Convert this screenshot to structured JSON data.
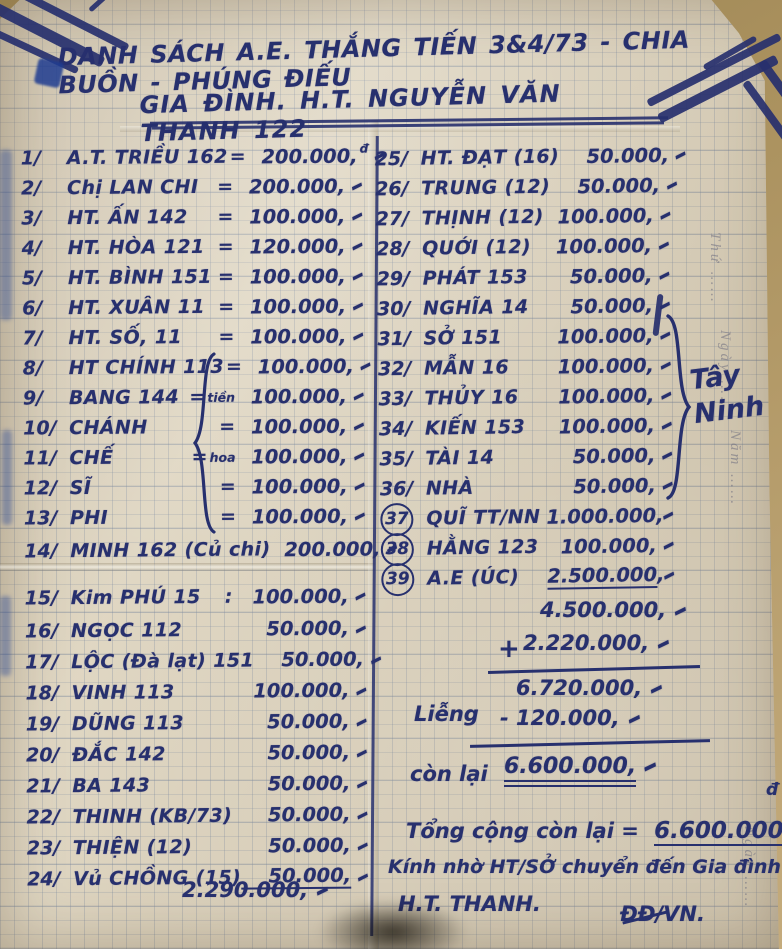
{
  "title": {
    "line1": "DANH SÁCH A.E. THẮNG TIẾN 3&4/73 - CHIA BUỒN - PHÚNG ĐIẾU",
    "line2": "GIA ĐÌNH. H.T. NGUYỄN VĂN THANH 122"
  },
  "left_entries": [
    {
      "no": "1/",
      "name": "A.T. TRIỀU 162",
      "eq": "=",
      "pre": "",
      "amount": "200.000,",
      "sup": "đ"
    },
    {
      "no": "2/",
      "name": "Chị LAN CHI",
      "eq": "=",
      "pre": "",
      "amount": "200.000,"
    },
    {
      "no": "3/",
      "name": "HT. ẤN 142",
      "eq": "=",
      "pre": "",
      "amount": "100.000,"
    },
    {
      "no": "4/",
      "name": "HT. HÒA 121",
      "eq": "=",
      "pre": "",
      "amount": "120.000,"
    },
    {
      "no": "5/",
      "name": "HT. BÌNH 151",
      "eq": "=",
      "pre": "",
      "amount": "100.000,"
    },
    {
      "no": "6/",
      "name": "HT. XUÂN 11",
      "eq": "=",
      "pre": "",
      "amount": "100.000,"
    },
    {
      "no": "7/",
      "name": "HT. SỐ, 11",
      "eq": "=",
      "pre": "",
      "amount": "100.000,"
    },
    {
      "no": "8/",
      "name": "HT CHÍNH 113",
      "eq": "=",
      "pre": "",
      "amount": "100.000,"
    },
    {
      "no": "9/",
      "name": "BANG 144",
      "eq": "=",
      "pre": "tiền",
      "amount": "100.000,"
    },
    {
      "no": "10/",
      "name": "CHÁNH",
      "eq": "=",
      "pre": "",
      "amount": "100.000,"
    },
    {
      "no": "11/",
      "name": "CHẾ",
      "eq": "=",
      "pre": "hoa",
      "amount": "100.000,"
    },
    {
      "no": "12/",
      "name": "SĨ",
      "eq": "=",
      "pre": "",
      "amount": "100.000,"
    },
    {
      "no": "13/",
      "name": "PHI",
      "eq": "=",
      "pre": "",
      "amount": "100.000,"
    },
    {
      "no": "14/",
      "name": "MINH 162 (Củ chi)",
      "eq": "",
      "pre": "",
      "amount": "200.000,",
      "h": "h36"
    },
    {
      "no": "15/",
      "name": "Kim PHÚ 15",
      "eq": ":",
      "pre": "",
      "amount": "100.000,",
      "h": "h46"
    },
    {
      "no": "16/",
      "name": "NGỌC 112",
      "eq": "",
      "pre": "",
      "amount": "50.000,",
      "h": "h31"
    },
    {
      "no": "17/",
      "name": "LỘC (Đà lạt) 151",
      "eq": "",
      "pre": "",
      "amount": "50.000,",
      "h": "h31"
    },
    {
      "no": "18/",
      "name": "VINH 113",
      "eq": "",
      "pre": "",
      "amount": "100.000,",
      "h": "h31"
    },
    {
      "no": "19/",
      "name": "DŨNG 113",
      "eq": "",
      "pre": "",
      "amount": "50.000,",
      "h": "h31"
    },
    {
      "no": "20/",
      "name": "ĐẮC 142",
      "eq": "",
      "pre": "",
      "amount": "50.000,",
      "h": "h31"
    },
    {
      "no": "21/",
      "name": "BA 143",
      "eq": "",
      "pre": "",
      "amount": "50.000,",
      "h": "h31"
    },
    {
      "no": "22/",
      "name": "THINH (KB/73)",
      "eq": "",
      "pre": "",
      "amount": "50.000,",
      "h": "h31"
    },
    {
      "no": "23/",
      "name": "THIỆN (12)",
      "eq": "",
      "pre": "",
      "amount": "50.000,",
      "h": "h31"
    },
    {
      "no": "24/",
      "name": "Vủ CHỒNG (15)",
      "eq": "",
      "pre": "",
      "amount": "50.000,",
      "h": "h31",
      "underline": true
    }
  ],
  "left_total": {
    "amount": "2.290.000,"
  },
  "right_entries": [
    {
      "no": "25/",
      "name": "HT. ĐẠT (16)",
      "amount": "50.000,"
    },
    {
      "no": "26/",
      "name": "TRUNG (12)",
      "amount": "50.000,"
    },
    {
      "no": "27/",
      "name": "THỊNH (12)",
      "amount": "100.000,"
    },
    {
      "no": "28/",
      "name": "QUỚI (12)",
      "amount": "100.000,"
    },
    {
      "no": "29/",
      "name": "PHÁT 153",
      "amount": "50.000,"
    },
    {
      "no": "30/",
      "name": "NGHĨA 14",
      "amount": "50.000,"
    },
    {
      "no": "31/",
      "name": "SỞ 151",
      "amount": "100.000,"
    },
    {
      "no": "32/",
      "name": "MẪN 16",
      "amount": "100.000,"
    },
    {
      "no": "33/",
      "name": "THỦY 16",
      "amount": "100.000,"
    },
    {
      "no": "34/",
      "name": "KIẾN 153",
      "amount": "100.000,"
    },
    {
      "no": "35/",
      "name": "TÀI 14",
      "amount": "50.000,"
    },
    {
      "no": "36/",
      "name": "NHÀ",
      "amount": "50.000,"
    },
    {
      "no": "37",
      "name": "QUĨ TT/NN",
      "amount": "1.000.000,",
      "circled": true
    },
    {
      "no": "38",
      "name": "HẰNG 123",
      "amount": "100.000,",
      "circled": true
    },
    {
      "no": "39",
      "name": "A.E (ÚC)",
      "amount": "2.500.000,",
      "circled": true,
      "underline": true
    }
  ],
  "brace_label": {
    "word1": "Tây",
    "word2": "Ninh"
  },
  "calc": {
    "sum_right": "4.500.000,",
    "plus_sign": "+",
    "sum_left": "2.220.000,",
    "subtotal": "6.720.000,",
    "deduct_label": "Liễng",
    "deduction": "- 120.000,",
    "remain_label": "còn lại",
    "remaining": "6.600.000,"
  },
  "footer": {
    "total_label": "Tổng cộng còn lại =",
    "total_value": "6.600.000,",
    "note": "Kính nhờ HT/SỞ chuyển đến Gia đình",
    "signature": "H.T. THANH.",
    "sign_right": "ĐĐ/VN."
  },
  "margin_print": {
    "thu": "Thứ ……",
    "ngay": "Ngày ……",
    "nam": "Năm ……",
    "ngay2": "Ngày ……"
  },
  "misc": {
    "tick": "-",
    "dong": "đ"
  }
}
